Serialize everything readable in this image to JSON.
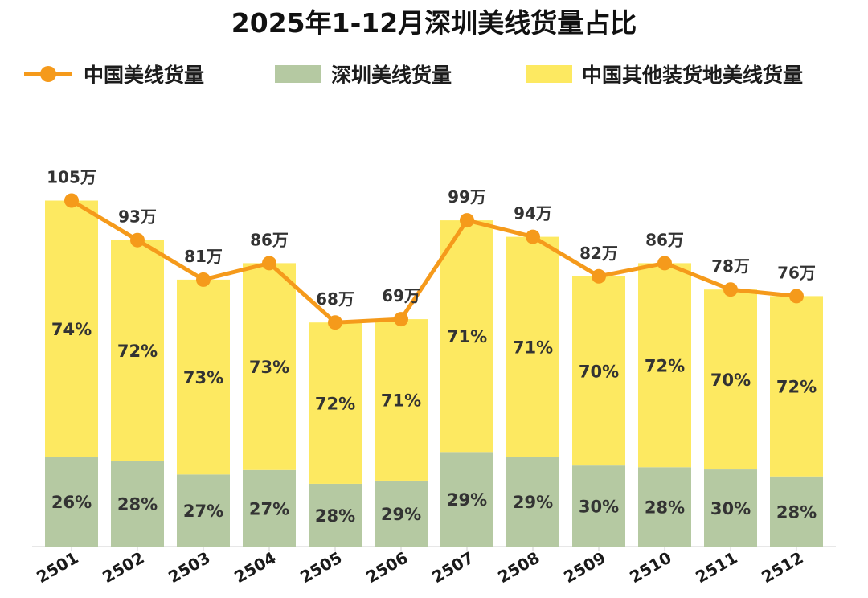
{
  "chart_data": {
    "type": "bar",
    "title": "2025年1-12月深圳美线货量占比",
    "categories": [
      "2501",
      "2502",
      "2503",
      "2504",
      "2505",
      "2506",
      "2507",
      "2508",
      "2509",
      "2510",
      "2511",
      "2512"
    ],
    "series": [
      {
        "name": "深圳美线货量",
        "values": [
          26,
          28,
          27,
          27,
          28,
          29,
          29,
          29,
          30,
          28,
          30,
          28
        ],
        "unit": "%",
        "color": "#b5c9a2"
      },
      {
        "name": "中国其他装货地美线货量",
        "values": [
          74,
          72,
          73,
          73,
          72,
          71,
          71,
          71,
          70,
          72,
          70,
          72
        ],
        "unit": "%",
        "color": "#fde961"
      },
      {
        "name": "中国美线货量",
        "type": "line",
        "values": [
          105,
          93,
          81,
          86,
          68,
          69,
          99,
          94,
          82,
          86,
          78,
          76
        ],
        "unit": "万",
        "color": "#f59a1b"
      }
    ],
    "total_label_suffix": "万",
    "percent_suffix": "%",
    "xlabel": "",
    "ylabel": "",
    "grid": false,
    "legend_position": "top"
  },
  "legend": {
    "line_label": "中国美线货量",
    "sz_label": "深圳美线货量",
    "other_label": "中国其他装货地美线货量"
  },
  "colors": {
    "line": "#f59a1b",
    "sz": "#b5c9a2",
    "other": "#fde961",
    "axis": "#cfcfcf"
  }
}
